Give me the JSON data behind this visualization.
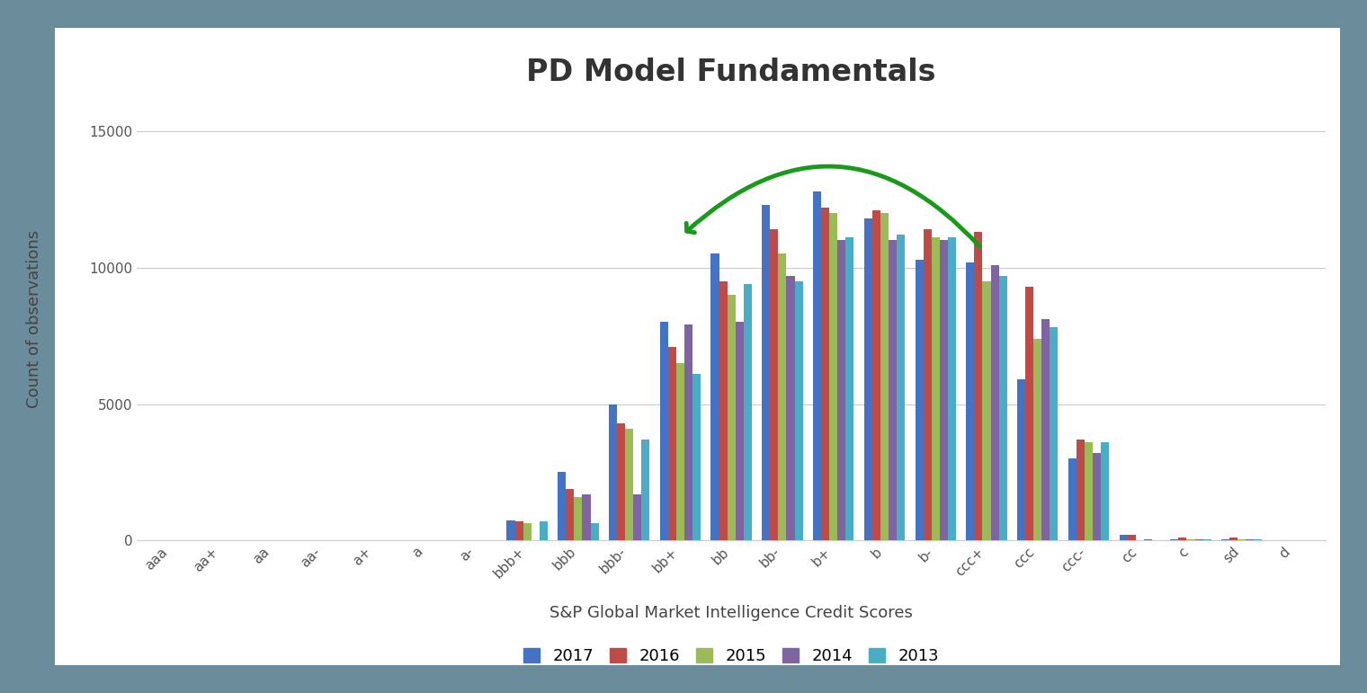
{
  "title": "PD Model Fundamentals",
  "xlabel": "S&P Global Market Intelligence Credit Scores",
  "ylabel": "Count of observations",
  "plot_bg": "#ffffff",
  "outer_bg": "#6b8c9a",
  "panel_bg": "#f5f5f5",
  "categories": [
    "aaa",
    "aa+",
    "aa",
    "aa-",
    "a+",
    "a",
    "a-",
    "bbb+",
    "bbb",
    "bbb-",
    "bb+",
    "bb",
    "bb-",
    "b+",
    "b",
    "b-",
    "ccc+",
    "ccc",
    "ccc-",
    "cc",
    "c",
    "sd",
    "d"
  ],
  "series": {
    "2017": [
      0,
      0,
      0,
      0,
      0,
      0,
      0,
      750,
      2500,
      5000,
      8000,
      10500,
      12300,
      12800,
      11800,
      10300,
      10200,
      5900,
      3000,
      200,
      50,
      50,
      0
    ],
    "2016": [
      0,
      0,
      0,
      0,
      0,
      0,
      0,
      700,
      1900,
      4300,
      7100,
      9500,
      11400,
      12200,
      12100,
      11400,
      11300,
      9300,
      3700,
      200,
      100,
      100,
      0
    ],
    "2015": [
      0,
      0,
      0,
      0,
      0,
      0,
      0,
      650,
      1600,
      4100,
      6500,
      9000,
      10500,
      12000,
      12000,
      11100,
      9500,
      7400,
      3600,
      0,
      50,
      50,
      0
    ],
    "2014": [
      0,
      0,
      0,
      0,
      0,
      0,
      0,
      0,
      1700,
      1700,
      7900,
      8000,
      9700,
      11000,
      11000,
      11000,
      10100,
      8100,
      3200,
      50,
      50,
      50,
      0
    ],
    "2013": [
      0,
      0,
      0,
      0,
      0,
      0,
      0,
      700,
      650,
      3700,
      6100,
      9400,
      9500,
      11100,
      11200,
      11100,
      9700,
      7800,
      3600,
      0,
      50,
      50,
      0
    ]
  },
  "colors": {
    "2017": "#4472C4",
    "2016": "#BE4B48",
    "2015": "#9BBB59",
    "2014": "#8064A2",
    "2013": "#4BACC6"
  },
  "ylim": [
    0,
    16500
  ],
  "yticks": [
    0,
    5000,
    10000,
    15000
  ],
  "ytick_labels": [
    "0",
    "5000",
    "10000",
    "15000"
  ],
  "arrow_color": "#1a9a1a",
  "arrow_lw": 3.5,
  "title_fontsize": 24,
  "axis_label_fontsize": 13,
  "tick_fontsize": 11,
  "legend_fontsize": 13,
  "bar_width": 0.16
}
